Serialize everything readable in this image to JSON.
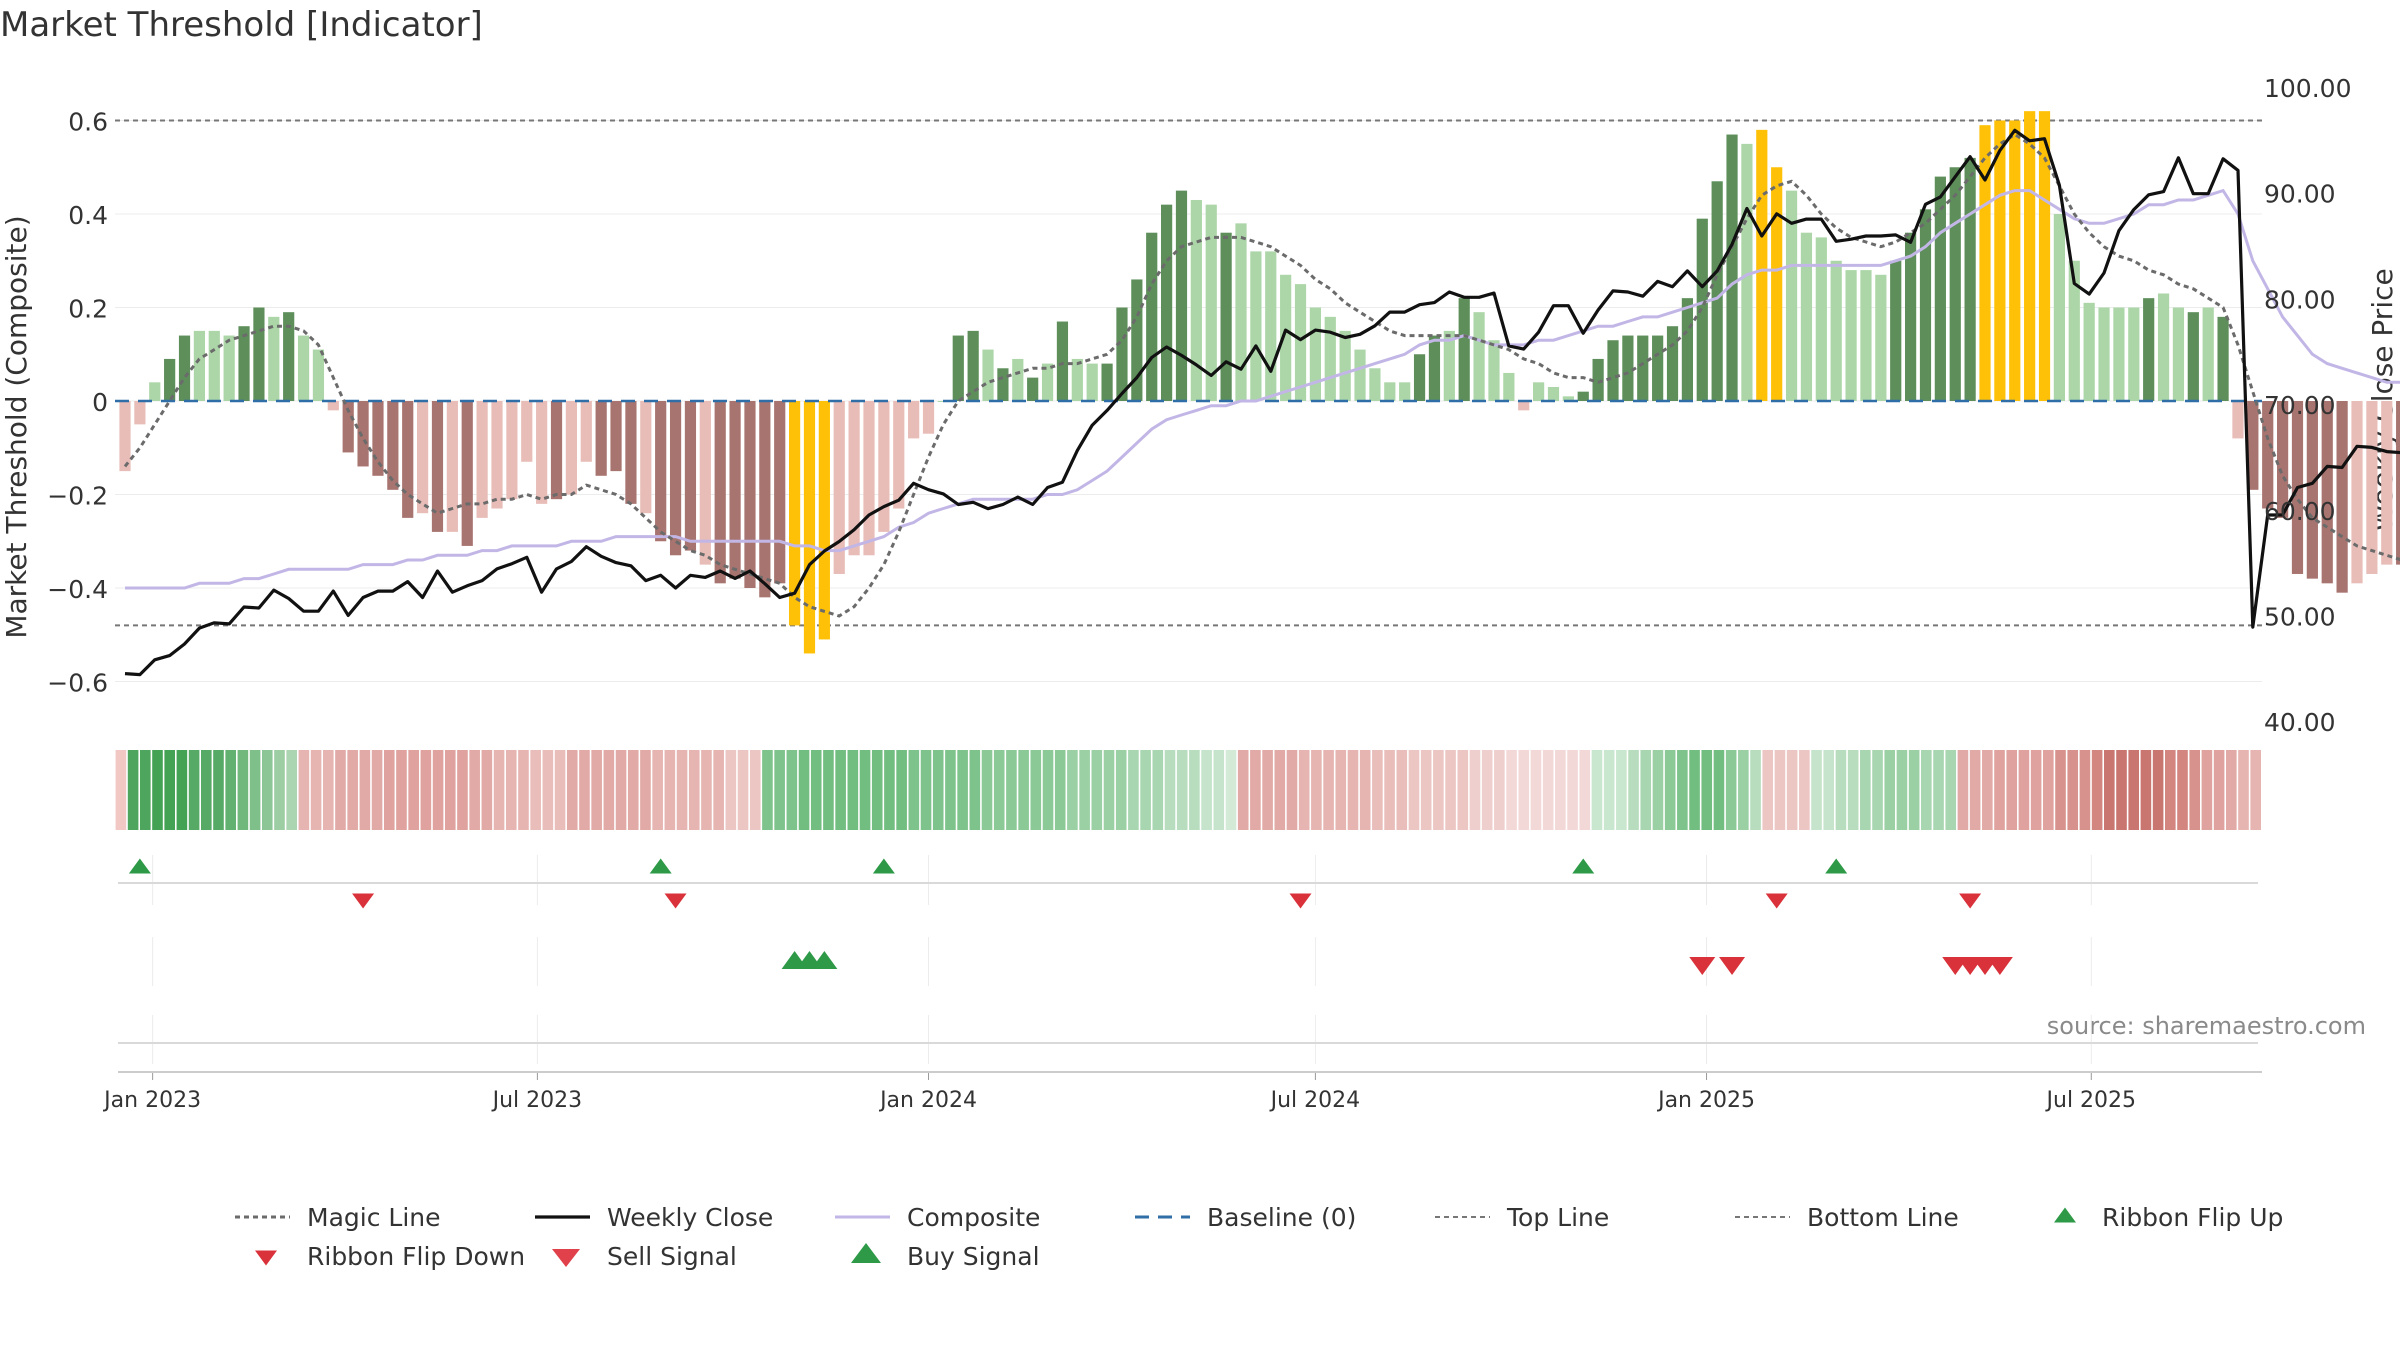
{
  "page": {
    "title": "Market Threshold [Indicator]",
    "source": "source: sharemaestro.com"
  },
  "colors": {
    "strong_green": "#5e8f5b",
    "light_green": "#acd6a8",
    "strong_red": "#a87470",
    "light_red": "#e8bdb8",
    "yellow": "#ffc107",
    "close": "#111111",
    "composite": "#c2b6e6",
    "magic": "#6b6b6b",
    "baseline": "#2f6ea6",
    "thresholds": "#777777",
    "buy": "#2e9a48",
    "sell": "#d9323a"
  },
  "chart_data": {
    "type": "bar",
    "title": "Market Threshold [Indicator]",
    "ylabel_left": "Market Threshold (Composite)",
    "ylabel_right": "Weekly Close Price",
    "ylim_left": [
      -0.68,
      0.7
    ],
    "ylim_right": [
      40,
      100
    ],
    "yticks_left": [
      {
        "v": 0.6,
        "label": "0.6"
      },
      {
        "v": 0.4,
        "label": "0.4"
      },
      {
        "v": 0.2,
        "label": "0.2"
      },
      {
        "v": 0,
        "label": "0"
      },
      {
        "v": -0.2,
        "label": "−0.2"
      },
      {
        "v": -0.4,
        "label": "−0.4"
      },
      {
        "v": -0.6,
        "label": "−0.6"
      }
    ],
    "yticks_right": [
      "100.00",
      "90.00",
      "80.00",
      "70.00",
      "60.00",
      "50.00",
      "40.00"
    ],
    "x_start": "2022-12-19",
    "x_step_days": 7,
    "xticks": [
      {
        "date": "2023-01-01",
        "label": "Jan 2023"
      },
      {
        "date": "2023-07-01",
        "label": "Jul 2023"
      },
      {
        "date": "2024-01-01",
        "label": "Jan 2024"
      },
      {
        "date": "2024-07-01",
        "label": "Jul 2024"
      },
      {
        "date": "2025-01-01",
        "label": "Jan 2025"
      },
      {
        "date": "2025-07-01",
        "label": "Jul 2025"
      }
    ],
    "top_line": 0.6,
    "bottom_line": -0.48,
    "composite": [
      -0.15,
      -0.05,
      0.04,
      0.09,
      0.14,
      0.15,
      0.15,
      0.14,
      0.16,
      0.2,
      0.18,
      0.19,
      0.14,
      0.11,
      -0.02,
      -0.11,
      -0.14,
      -0.16,
      -0.19,
      -0.25,
      -0.24,
      -0.28,
      -0.28,
      -0.31,
      -0.25,
      -0.23,
      -0.21,
      -0.13,
      -0.22,
      -0.21,
      -0.2,
      -0.13,
      -0.16,
      -0.15,
      -0.22,
      -0.24,
      -0.3,
      -0.33,
      -0.32,
      -0.35,
      -0.39,
      -0.38,
      -0.4,
      -0.42,
      -0.39,
      -0.48,
      -0.54,
      -0.51,
      -0.37,
      -0.33,
      -0.33,
      -0.28,
      -0.23,
      -0.08,
      -0.07,
      0,
      0.14,
      0.15,
      0.11,
      0.07,
      0.09,
      0.05,
      0.08,
      0.17,
      0.09,
      0.08,
      0.08,
      0.2,
      0.26,
      0.36,
      0.42,
      0.45,
      0.43,
      0.42,
      0.36,
      0.38,
      0.32,
      0.32,
      0.27,
      0.25,
      0.2,
      0.18,
      0.15,
      0.11,
      0.07,
      0.04,
      0.04,
      0.1,
      0.14,
      0.15,
      0.22,
      0.19,
      0.13,
      0.06,
      -0.02,
      0.04,
      0.03,
      0.01,
      0.02,
      0.09,
      0.13,
      0.14,
      0.14,
      0.14,
      0.16,
      0.22,
      0.39,
      0.47,
      0.57,
      0.55,
      0.58,
      0.5,
      0.45,
      0.36,
      0.35,
      0.3,
      0.28,
      0.28,
      0.27,
      0.3,
      0.36,
      0.41,
      0.48,
      0.5,
      0.52,
      0.59,
      0.6,
      0.6,
      0.62,
      0.62,
      0.4,
      0.3,
      0.21,
      0.2,
      0.2,
      0.2,
      0.22,
      0.23,
      0.2,
      0.19,
      0.2,
      0.18,
      -0.08,
      -0.19,
      -0.23,
      -0.25,
      -0.37,
      -0.38,
      -0.39,
      -0.41,
      -0.39,
      -0.37,
      -0.35,
      -0.35,
      -0.4,
      -0.37,
      -0.38,
      -0.38,
      -0.36
    ],
    "bar_kind": [
      3,
      3,
      1,
      0,
      0,
      1,
      1,
      1,
      0,
      0,
      1,
      0,
      1,
      1,
      3,
      2,
      2,
      2,
      2,
      2,
      3,
      2,
      3,
      2,
      3,
      3,
      3,
      3,
      3,
      2,
      3,
      3,
      2,
      2,
      2,
      3,
      2,
      2,
      2,
      3,
      2,
      2,
      2,
      2,
      2,
      4,
      4,
      4,
      3,
      3,
      3,
      3,
      3,
      3,
      3,
      1,
      0,
      0,
      1,
      0,
      1,
      0,
      1,
      0,
      1,
      1,
      0,
      0,
      0,
      0,
      0,
      0,
      1,
      1,
      0,
      1,
      1,
      1,
      1,
      1,
      1,
      1,
      1,
      1,
      1,
      1,
      1,
      0,
      0,
      1,
      0,
      1,
      1,
      1,
      3,
      1,
      1,
      1,
      0,
      0,
      0,
      0,
      0,
      0,
      0,
      0,
      0,
      0,
      0,
      1,
      4,
      4,
      1,
      1,
      1,
      1,
      1,
      1,
      1,
      0,
      0,
      0,
      0,
      0,
      0,
      4,
      4,
      4,
      4,
      4,
      1,
      1,
      1,
      1,
      1,
      1,
      0,
      1,
      1,
      0,
      1,
      0,
      3,
      2,
      2,
      2,
      2,
      2,
      2,
      2,
      3,
      3,
      3,
      2,
      3,
      2,
      2,
      3
    ],
    "magic_line": [
      -0.14,
      -0.1,
      -0.05,
      0,
      0.05,
      0.09,
      0.11,
      0.13,
      0.14,
      0.15,
      0.16,
      0.16,
      0.15,
      0.12,
      0.05,
      -0.02,
      -0.08,
      -0.13,
      -0.17,
      -0.2,
      -0.22,
      -0.24,
      -0.23,
      -0.22,
      -0.22,
      -0.21,
      -0.21,
      -0.2,
      -0.21,
      -0.2,
      -0.2,
      -0.18,
      -0.19,
      -0.2,
      -0.22,
      -0.25,
      -0.28,
      -0.3,
      -0.32,
      -0.33,
      -0.35,
      -0.36,
      -0.37,
      -0.38,
      -0.39,
      -0.42,
      -0.44,
      -0.45,
      -0.46,
      -0.44,
      -0.4,
      -0.35,
      -0.28,
      -0.2,
      -0.12,
      -0.05,
      0,
      0.02,
      0.04,
      0.05,
      0.06,
      0.07,
      0.07,
      0.08,
      0.08,
      0.09,
      0.1,
      0.13,
      0.18,
      0.25,
      0.3,
      0.33,
      0.34,
      0.35,
      0.35,
      0.35,
      0.34,
      0.33,
      0.31,
      0.29,
      0.26,
      0.24,
      0.21,
      0.19,
      0.17,
      0.15,
      0.14,
      0.14,
      0.14,
      0.14,
      0.14,
      0.13,
      0.12,
      0.11,
      0.09,
      0.08,
      0.06,
      0.05,
      0.05,
      0.04,
      0.05,
      0.06,
      0.08,
      0.1,
      0.12,
      0.15,
      0.2,
      0.27,
      0.33,
      0.39,
      0.44,
      0.46,
      0.47,
      0.44,
      0.4,
      0.37,
      0.35,
      0.34,
      0.33,
      0.34,
      0.36,
      0.38,
      0.41,
      0.44,
      0.48,
      0.52,
      0.55,
      0.57,
      0.55,
      0.52,
      0.46,
      0.4,
      0.36,
      0.33,
      0.31,
      0.3,
      0.28,
      0.27,
      0.25,
      0.24,
      0.22,
      0.2,
      0.12,
      0.02,
      -0.08,
      -0.16,
      -0.21,
      -0.25,
      -0.27,
      -0.29,
      -0.31,
      -0.32,
      -0.33,
      -0.34,
      -0.34,
      -0.35,
      -0.35,
      -0.35,
      -0.35
    ],
    "weekly_close": [
      44.6,
      44.5,
      45.9,
      46.3,
      47.4,
      48.9,
      49.4,
      49.3,
      50.9,
      50.8,
      52.5,
      51.7,
      50.5,
      50.5,
      52.4,
      50.1,
      51.8,
      52.4,
      52.4,
      53.3,
      51.8,
      54.3,
      52.3,
      52.9,
      53.4,
      54.5,
      55,
      55.6,
      52.3,
      54.5,
      55.2,
      56.6,
      55.7,
      55.1,
      54.8,
      53.4,
      53.9,
      52.7,
      53.9,
      53.7,
      54.3,
      53.6,
      54.3,
      53.1,
      51.8,
      52.2,
      54.9,
      56.2,
      57.1,
      58.2,
      59.6,
      60.4,
      61,
      62.6,
      62,
      61.6,
      60.6,
      60.8,
      60.2,
      60.6,
      61.3,
      60.6,
      62.2,
      62.7,
      65.7,
      68.1,
      69.5,
      71.1,
      72.6,
      74.5,
      75.5,
      74.7,
      73.8,
      72.8,
      74.1,
      73.4,
      75.6,
      73.2,
      77.1,
      76.2,
      77.1,
      76.9,
      76.4,
      76.7,
      77.5,
      78.8,
      78.8,
      79.5,
      79.7,
      80.7,
      80.2,
      80.2,
      80.6,
      75.6,
      75.3,
      76.9,
      79.4,
      79.4,
      76.8,
      79,
      80.8,
      80.7,
      80.3,
      81.7,
      81.2,
      82.7,
      81.2,
      82.7,
      85.2,
      88.6,
      86,
      88.1,
      87.2,
      87.6,
      87.6,
      85.5,
      85.7,
      86,
      86,
      86.1,
      85.4,
      89,
      89.7,
      91.6,
      93.5,
      91.3,
      94.1,
      96,
      95,
      95.2,
      90.8,
      81.5,
      80.5,
      82.5,
      86.5,
      88.5,
      89.9,
      90.2,
      93.4,
      90,
      90,
      93.3,
      92.2,
      49,
      59.6,
      59.6,
      62.2,
      62.6,
      64.2,
      64.1,
      66.1,
      66,
      65.6,
      65.5,
      65.1,
      65.2,
      65.5,
      64.7,
      66.1
    ],
    "composite_line": [
      -0.4,
      -0.4,
      -0.4,
      -0.4,
      -0.4,
      -0.39,
      -0.39,
      -0.39,
      -0.38,
      -0.38,
      -0.37,
      -0.36,
      -0.36,
      -0.36,
      -0.36,
      -0.36,
      -0.35,
      -0.35,
      -0.35,
      -0.34,
      -0.34,
      -0.33,
      -0.33,
      -0.33,
      -0.32,
      -0.32,
      -0.31,
      -0.31,
      -0.31,
      -0.31,
      -0.3,
      -0.3,
      -0.3,
      -0.29,
      -0.29,
      -0.29,
      -0.29,
      -0.29,
      -0.3,
      -0.3,
      -0.3,
      -0.3,
      -0.3,
      -0.3,
      -0.3,
      -0.31,
      -0.31,
      -0.32,
      -0.32,
      -0.31,
      -0.3,
      -0.29,
      -0.27,
      -0.26,
      -0.24,
      -0.23,
      -0.22,
      -0.21,
      -0.21,
      -0.21,
      -0.21,
      -0.21,
      -0.2,
      -0.2,
      -0.19,
      -0.17,
      -0.15,
      -0.12,
      -0.09,
      -0.06,
      -0.04,
      -0.03,
      -0.02,
      -0.01,
      -0.01,
      0,
      0,
      0.01,
      0.02,
      0.03,
      0.04,
      0.05,
      0.06,
      0.07,
      0.08,
      0.09,
      0.1,
      0.12,
      0.13,
      0.13,
      0.14,
      0.13,
      0.12,
      0.12,
      0.12,
      0.13,
      0.13,
      0.14,
      0.15,
      0.16,
      0.16,
      0.17,
      0.18,
      0.18,
      0.19,
      0.2,
      0.21,
      0.22,
      0.25,
      0.27,
      0.28,
      0.28,
      0.29,
      0.29,
      0.29,
      0.29,
      0.29,
      0.29,
      0.29,
      0.3,
      0.31,
      0.33,
      0.36,
      0.38,
      0.4,
      0.42,
      0.44,
      0.45,
      0.45,
      0.43,
      0.41,
      0.39,
      0.38,
      0.38,
      0.39,
      0.4,
      0.42,
      0.42,
      0.43,
      0.43,
      0.44,
      0.45,
      0.4,
      0.3,
      0.24,
      0.18,
      0.14,
      0.1,
      0.08,
      0.07,
      0.06,
      0.05,
      0.04,
      0.04,
      0.03,
      0.03,
      0.02,
      0.01,
      0.01
    ],
    "ribbon_colors": [
      "#f2c8c5",
      "#4ea55d",
      "#4ea55d",
      "#44a254",
      "#44a254",
      "#44a254",
      "#56aa66",
      "#56aa66",
      "#56aa66",
      "#63b170",
      "#70b87c",
      "#7fbf89",
      "#8dc696",
      "#9ccda3",
      "#abd4b1",
      "#e6b5b2",
      "#e6b5b2",
      "#e6b5b2",
      "#e2aaa6",
      "#e2aaa6",
      "#e2aaa6",
      "#e2aaa6",
      "#dfa29e",
      "#dfa29e",
      "#dfa29e",
      "#dfa29e",
      "#dfa29e",
      "#dfa29e",
      "#dfa29e",
      "#e2aaa6",
      "#e2aaa6",
      "#e6b5b2",
      "#e6b5b2",
      "#e6b5b2",
      "#e9bdba",
      "#e9bdba",
      "#e9bdba",
      "#e2aaa6",
      "#e2aaa6",
      "#e2aaa6",
      "#e2aaa6",
      "#e2aaa6",
      "#e2aaa6",
      "#e2aaa6",
      "#e6b5b2",
      "#e6b5b2",
      "#e6b5b2",
      "#e6b5b2",
      "#e6b5b2",
      "#e6b5b2",
      "#ecc6c3",
      "#ecc6c3",
      "#ecc6c3",
      "#7fc38c",
      "#7fc38c",
      "#7fc38c",
      "#72bd80",
      "#72bd80",
      "#72bd80",
      "#72bd80",
      "#72bd80",
      "#72bd80",
      "#72bd80",
      "#72bd80",
      "#72bd80",
      "#7fc38c",
      "#7fc38c",
      "#7fc38c",
      "#7fc38c",
      "#7fc38c",
      "#7fc38c",
      "#8bc997",
      "#8bc997",
      "#8bc997",
      "#8bc997",
      "#8bc997",
      "#8bc997",
      "#8bc997",
      "#9ad0a4",
      "#9ad0a4",
      "#9ad0a4",
      "#9ad0a4",
      "#9ad0a4",
      "#a8d6b1",
      "#a8d6b1",
      "#a8d6b1",
      "#b7ddbe",
      "#b7ddbe",
      "#b7ddbe",
      "#c5e4cb",
      "#c5e4cb",
      "#d3ead7",
      "#e2aaa6",
      "#e2aaa6",
      "#e2aaa6",
      "#e2aaa6",
      "#e2aaa6",
      "#e6b5b2",
      "#e6b5b2",
      "#e6b5b2",
      "#e6b5b2",
      "#e6b5b2",
      "#e6b5b2",
      "#e9bdba",
      "#e9bdba",
      "#e9bdba",
      "#ecc6c3",
      "#ecc6c3",
      "#ecc6c3",
      "#ecc6c3",
      "#ecc6c3",
      "#efcfcd",
      "#efcfcd",
      "#efcfcd",
      "#f2d8d6",
      "#f2d8d6",
      "#f2d8d6",
      "#f2d8d6",
      "#f2d8d6",
      "#f2d8d6",
      "#f2d8d6",
      "#c9e6ce",
      "#c9e6ce",
      "#c9e6ce",
      "#b7ddbe",
      "#a8d6b1",
      "#9ad0a4",
      "#8bc997",
      "#7fc38c",
      "#72bd80",
      "#72bd80",
      "#72bd80",
      "#8bc997",
      "#9ad0a4",
      "#b7ddbe",
      "#ecc6c3",
      "#ecc6c3",
      "#ecc6c3",
      "#ecc6c3",
      "#c5e4cb",
      "#c5e4cb",
      "#b7ddbe",
      "#b7ddbe",
      "#a8d6b1",
      "#a8d6b1",
      "#9ad0a4",
      "#9ad0a4",
      "#9ad0a4",
      "#a8d6b1",
      "#a8d6b1",
      "#a8d6b1",
      "#e2aaa6",
      "#e2aaa6",
      "#e2aaa6",
      "#dfa29e",
      "#dfa29e",
      "#dfa29e",
      "#dfa29e",
      "#dfa29e",
      "#d8928d",
      "#d8928d",
      "#d8928d",
      "#d38580",
      "#c97570",
      "#c97570",
      "#c97570",
      "#c97570",
      "#c97570",
      "#d38580",
      "#d38580",
      "#d8928d",
      "#dfa29e",
      "#dfa29e",
      "#e2aaa6",
      "#e6b5b2",
      "#e6b5b2"
    ],
    "ribbon_flip_up": [
      1,
      36,
      51,
      98,
      115
    ],
    "ribbon_flip_down": [
      16,
      37,
      79,
      111,
      124
    ],
    "buy_signal": [
      45,
      46,
      47
    ],
    "sell_signal": [
      106,
      108,
      123,
      124,
      125,
      126
    ]
  },
  "legend": [
    {
      "key": "magic",
      "label": "Magic Line"
    },
    {
      "key": "close",
      "label": "Weekly Close"
    },
    {
      "key": "composite",
      "label": "Composite"
    },
    {
      "key": "baseline",
      "label": "Baseline (0)"
    },
    {
      "key": "top",
      "label": "Top Line"
    },
    {
      "key": "bottom",
      "label": "Bottom Line"
    },
    {
      "key": "flip_up",
      "label": "Ribbon Flip Up"
    },
    {
      "key": "flip_down",
      "label": "Ribbon Flip Down"
    },
    {
      "key": "sell",
      "label": "Sell Signal"
    },
    {
      "key": "buy",
      "label": "Buy Signal"
    }
  ]
}
